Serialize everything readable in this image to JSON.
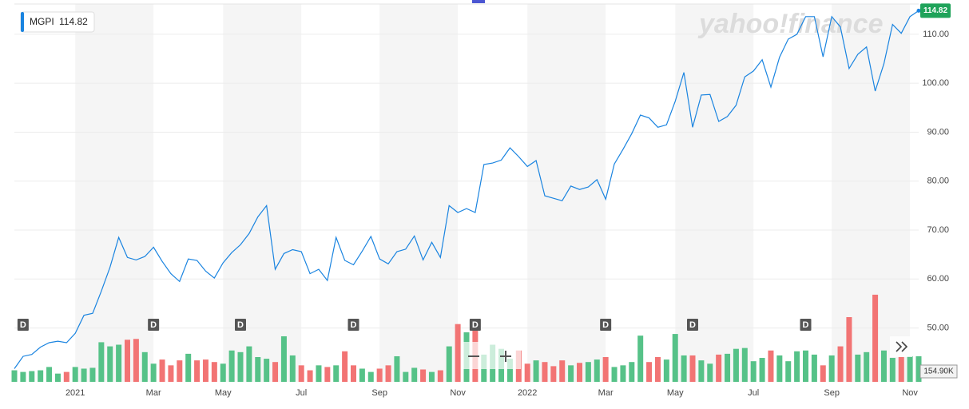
{
  "chart_data": {
    "type": "line",
    "watermark": "yahoo!finance",
    "categories": [
      null,
      null,
      null,
      null,
      null,
      null,
      null,
      "2021",
      null,
      null,
      null,
      null,
      null,
      null,
      null,
      null,
      "Mar",
      null,
      null,
      null,
      null,
      null,
      null,
      null,
      "May",
      null,
      null,
      null,
      null,
      null,
      null,
      null,
      null,
      "Jul",
      null,
      null,
      null,
      null,
      null,
      null,
      null,
      null,
      "Sep",
      null,
      null,
      null,
      null,
      null,
      null,
      null,
      null,
      "Nov",
      null,
      null,
      null,
      null,
      null,
      null,
      null,
      "2022",
      null,
      null,
      null,
      null,
      null,
      null,
      null,
      null,
      "Mar",
      null,
      null,
      null,
      null,
      null,
      null,
      null,
      "May",
      null,
      null,
      null,
      null,
      null,
      null,
      null,
      null,
      "Jul",
      null,
      null,
      null,
      null,
      null,
      null,
      null,
      null,
      "Sep",
      null,
      null,
      null,
      null,
      null,
      null,
      null,
      null,
      "Nov",
      null
    ],
    "series": [
      {
        "name": "MGPI",
        "color": "#1a84e0",
        "values": [
          41.7,
          44.2,
          44.6,
          46.1,
          47,
          47.3,
          47,
          48.9,
          52.6,
          53,
          57.5,
          62.4,
          68.5,
          64.4,
          63.9,
          64.6,
          66.5,
          63.6,
          61.1,
          59.5,
          64.1,
          63.8,
          61.6,
          60.2,
          63.3,
          65.4,
          67,
          69.3,
          72.7,
          75,
          62,
          65.2,
          66,
          65.6,
          61.1,
          62,
          59.7,
          68.5,
          63.8,
          62.9,
          65.7,
          68.7,
          64.1,
          63.1,
          65.6,
          66.1,
          68.8,
          63.9,
          67.5,
          64.4,
          75,
          73.6,
          74.4,
          73.6,
          83.4,
          83.7,
          84.3,
          86.8,
          85,
          83,
          84.2,
          77,
          76.5,
          76,
          79,
          78.3,
          78.8,
          80.3,
          76.3,
          83.5,
          86.5,
          89.7,
          93.5,
          92.9,
          91,
          91.5,
          96.3,
          102.2,
          91,
          97.6,
          97.7,
          92.2,
          93.2,
          95.5,
          101.3,
          102.5,
          104.8,
          99.2,
          105.3,
          109,
          110,
          113.6,
          113.6,
          105.4,
          113.6,
          111.5,
          103,
          105.9,
          107.4,
          98.4,
          104,
          112,
          110.2,
          113.6,
          114.82
        ]
      }
    ],
    "ylim": [
      39,
      117
    ],
    "yticks": [
      {
        "value": 50,
        "label": "50.00"
      },
      {
        "value": 60,
        "label": "60.00"
      },
      {
        "value": 70,
        "label": "70.00"
      },
      {
        "value": 80,
        "label": "80.00"
      },
      {
        "value": 90,
        "label": "90.00"
      },
      {
        "value": 100,
        "label": "100.00"
      },
      {
        "value": 110,
        "label": "110.00"
      }
    ],
    "grid": true,
    "last_price_color": "#1fa35a",
    "volume": {
      "up_color": "#56c288",
      "down_color": "#f27474",
      "values": [
        70,
        60,
        65,
        70,
        90,
        50,
        60,
        90,
        80,
        85,
        240,
        215,
        225,
        255,
        260,
        180,
        110,
        135,
        100,
        130,
        170,
        130,
        135,
        120,
        110,
        190,
        180,
        215,
        150,
        140,
        120,
        276,
        160,
        100,
        70,
        100,
        90,
        100,
        185,
        100,
        80,
        60,
        80,
        100,
        155,
        60,
        85,
        75,
        60,
        70,
        215,
        350,
        300,
        363,
        165,
        225,
        200,
        140,
        190,
        110,
        130,
        120,
        95,
        130,
        100,
        115,
        120,
        135,
        150,
        90,
        100,
        120,
        280,
        120,
        150,
        135,
        290,
        160,
        160,
        130,
        110,
        165,
        170,
        200,
        205,
        125,
        145,
        190,
        160,
        125,
        185,
        190,
        165,
        100,
        160,
        215,
        392,
        165,
        180,
        528,
        190,
        145,
        150,
        155,
        154.9
      ],
      "value_labels": [
        null,
        null,
        null,
        null,
        null,
        null,
        null,
        null,
        null,
        null,
        null,
        null,
        null,
        null,
        null,
        null,
        null,
        null,
        null,
        null,
        null,
        null,
        null,
        null,
        null,
        null,
        null,
        null,
        null,
        null,
        null,
        null,
        null,
        null,
        null,
        null,
        null,
        null,
        null,
        null,
        null,
        null,
        null,
        null,
        null,
        null,
        null,
        null,
        null,
        null,
        null,
        null,
        null,
        null,
        null,
        null,
        null,
        null,
        null,
        null,
        null,
        null,
        null,
        null,
        null,
        null,
        null,
        null,
        null,
        null,
        null,
        null,
        null,
        null,
        null,
        null,
        null,
        null,
        null,
        null,
        null,
        null,
        null,
        null,
        null,
        null,
        null,
        null,
        null,
        null,
        null,
        null,
        null,
        null,
        null,
        null,
        null,
        null,
        null,
        null,
        null,
        null,
        null,
        null,
        "154.90K"
      ]
    },
    "annotations": [
      {
        "label": "D",
        "at": 1
      },
      {
        "label": "D",
        "at": 16
      },
      {
        "label": "D",
        "at": 26
      },
      {
        "label": "D",
        "at": 39
      },
      {
        "label": "D",
        "at": 53
      },
      {
        "label": "D",
        "at": 68
      },
      {
        "label": "D",
        "at": 78
      },
      {
        "label": "D",
        "at": 91
      }
    ]
  }
}
